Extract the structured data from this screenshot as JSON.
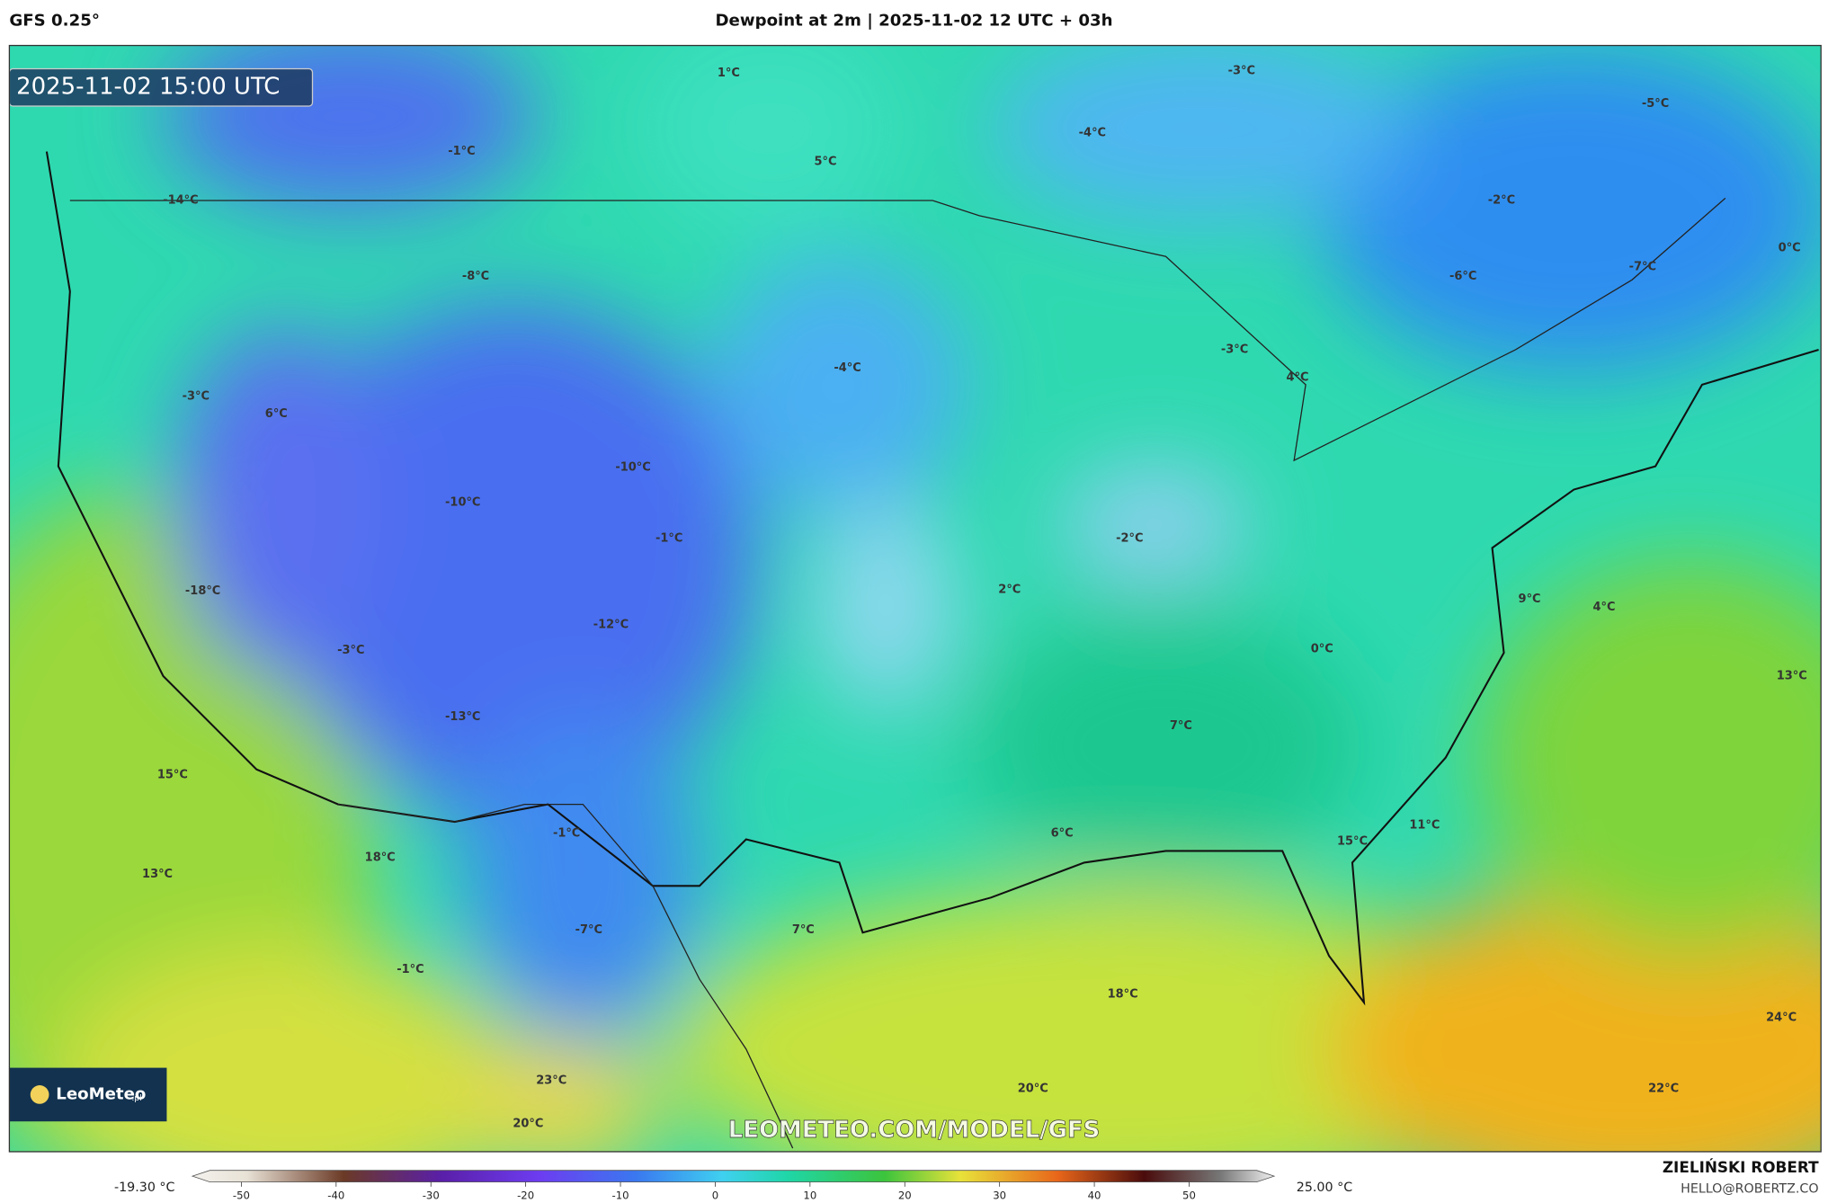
{
  "header": {
    "model": "GFS 0.25°",
    "title": "Dewpoint at 2m | 2025-11-02 12 UTC + 03h"
  },
  "map": {
    "timestamp": "2025-11-02 15:00 UTC",
    "labels": [
      "1°C",
      "-3°C",
      "-5°C",
      "-1°C",
      "5°C",
      "-4°C",
      "-14°C",
      "-2°C",
      "-8°C",
      "-6°C",
      "-7°C",
      "0°C",
      "-4°C",
      "-3°C",
      "4°C",
      "-3°C",
      "6°C",
      "-10°C",
      "-10°C",
      "-1°C",
      "-2°C",
      "-18°C",
      "2°C",
      "9°C",
      "4°C",
      "-12°C",
      "-3°C",
      "0°C",
      "13°C",
      "-13°C",
      "7°C",
      "15°C",
      "-1°C",
      "6°C",
      "11°C",
      "15°C",
      "18°C",
      "13°C",
      "-7°C",
      "7°C",
      "-1°C",
      "18°C",
      "24°C",
      "23°C",
      "20°C",
      "22°C",
      "20°C"
    ],
    "watermark": "LEOMETEO.COM/MODEL/GFS",
    "logo": {
      "name": "LeoMeteo",
      "suffix": ".pl"
    }
  },
  "legend": {
    "min_label": "-19.30 °C",
    "max_label": "25.00 °C",
    "ticks": [
      -50,
      -40,
      -30,
      -20,
      -10,
      0,
      10,
      20,
      30,
      40,
      50
    ]
  },
  "footer": {
    "author": "ZIELIŃSKI ROBERT",
    "email": "HELLO@ROBERTZ.CO"
  }
}
